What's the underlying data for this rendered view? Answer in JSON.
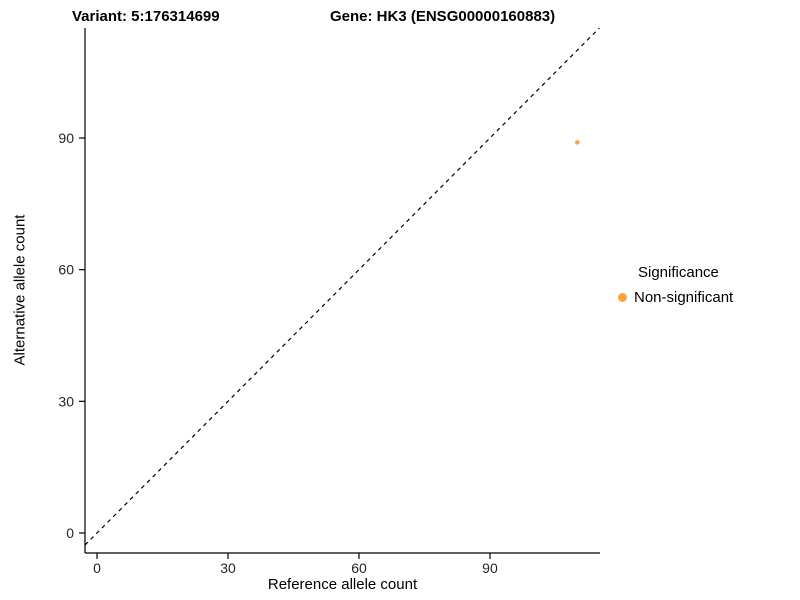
{
  "header": {
    "variant_title": "Variant: 5:176314699",
    "gene_title": "Gene: HK3 (ENSG00000160883)"
  },
  "chart_data": {
    "type": "scatter",
    "title_left": "Variant: 5:176314699",
    "title_right": "Gene: HK3 (ENSG00000160883)",
    "xlabel": "Reference allele count",
    "ylabel": "Alternative allele count",
    "x_ticks": [
      0,
      30,
      60,
      90
    ],
    "y_ticks": [
      0,
      30,
      60,
      90
    ],
    "xlim": [
      -2.75,
      115.2
    ],
    "ylim": [
      -4.56,
      115.06
    ],
    "grid": "off",
    "points": [
      {
        "x": 110,
        "y": 89,
        "series": "Non-significant",
        "color": "#FAA43A"
      }
    ],
    "reference_line": {
      "type": "identity",
      "slope": 1,
      "intercept": 0,
      "style": "dashed",
      "color": "#000000"
    },
    "legend": {
      "title": "Significance",
      "position": "right",
      "entries": [
        {
          "label": "Non-significant",
          "color": "#FAA43A"
        }
      ]
    },
    "colors": {
      "axis_line": "#000000",
      "tick_text": "#262626"
    }
  }
}
